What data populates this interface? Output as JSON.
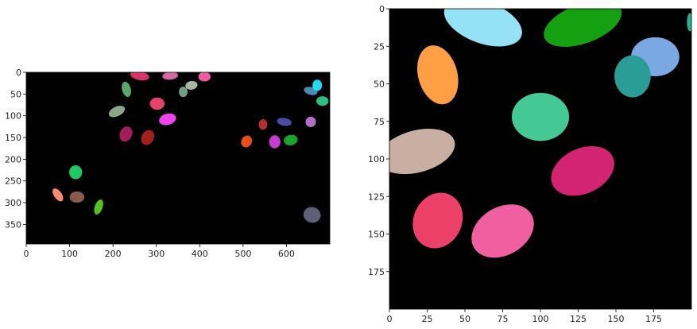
{
  "panels": [
    {
      "id": "left",
      "image_width": 700,
      "image_height": 395,
      "xticks": [
        0,
        100,
        200,
        300,
        400,
        500,
        600
      ],
      "yticks": [
        0,
        50,
        100,
        150,
        200,
        250,
        300,
        350
      ],
      "background": "#000000",
      "blobs": [
        {
          "x": 262,
          "y": 8,
          "rx": 22,
          "ry": 10,
          "rot": 10,
          "color": "#d6336c"
        },
        {
          "x": 332,
          "y": 8,
          "rx": 18,
          "ry": 9,
          "rot": -5,
          "color": "#d46aa3"
        },
        {
          "x": 411,
          "y": 10,
          "rx": 14,
          "ry": 11,
          "rot": 0,
          "color": "#f25ca4"
        },
        {
          "x": 231,
          "y": 39,
          "rx": 10,
          "ry": 18,
          "rot": -15,
          "color": "#5aa96b"
        },
        {
          "x": 302,
          "y": 72,
          "rx": 17,
          "ry": 14,
          "rot": 0,
          "color": "#e6416b"
        },
        {
          "x": 362,
          "y": 45,
          "rx": 10,
          "ry": 12,
          "rot": 0,
          "color": "#6f9f86"
        },
        {
          "x": 381,
          "y": 30,
          "rx": 14,
          "ry": 10,
          "rot": -10,
          "color": "#a8b5a0"
        },
        {
          "x": 209,
          "y": 90,
          "rx": 20,
          "ry": 11,
          "rot": -25,
          "color": "#8aa888"
        },
        {
          "x": 326,
          "y": 108,
          "rx": 20,
          "ry": 13,
          "rot": -15,
          "color": "#ee44ee"
        },
        {
          "x": 230,
          "y": 142,
          "rx": 14,
          "ry": 18,
          "rot": 25,
          "color": "#a31d5d"
        },
        {
          "x": 280,
          "y": 150,
          "rx": 14,
          "ry": 18,
          "rot": 30,
          "color": "#a32020"
        },
        {
          "x": 656,
          "y": 43,
          "rx": 16,
          "ry": 9,
          "rot": 15,
          "color": "#4a8bb5"
        },
        {
          "x": 671,
          "y": 30,
          "rx": 11,
          "ry": 13,
          "rot": 0,
          "color": "#24d9f0"
        },
        {
          "x": 683,
          "y": 66,
          "rx": 14,
          "ry": 11,
          "rot": 0,
          "color": "#2cbf80"
        },
        {
          "x": 546,
          "y": 120,
          "rx": 10,
          "ry": 12,
          "rot": 0,
          "color": "#b03030"
        },
        {
          "x": 595,
          "y": 114,
          "rx": 17,
          "ry": 9,
          "rot": 10,
          "color": "#4b4ba8"
        },
        {
          "x": 656,
          "y": 114,
          "rx": 12,
          "ry": 12,
          "rot": 0,
          "color": "#b06ec6"
        },
        {
          "x": 508,
          "y": 159,
          "rx": 12,
          "ry": 14,
          "rot": 30,
          "color": "#e84d1b"
        },
        {
          "x": 573,
          "y": 160,
          "rx": 13,
          "ry": 15,
          "rot": 0,
          "color": "#c83cd0"
        },
        {
          "x": 610,
          "y": 156,
          "rx": 16,
          "ry": 12,
          "rot": -10,
          "color": "#18a32a"
        },
        {
          "x": 114,
          "y": 230,
          "rx": 15,
          "ry": 16,
          "rot": 0,
          "color": "#1ec864"
        },
        {
          "x": 73,
          "y": 282,
          "rx": 9,
          "ry": 17,
          "rot": -35,
          "color": "#ff8a6b"
        },
        {
          "x": 117,
          "y": 287,
          "rx": 17,
          "ry": 13,
          "rot": 0,
          "color": "#8a5a4a"
        },
        {
          "x": 167,
          "y": 310,
          "rx": 9,
          "ry": 18,
          "rot": 20,
          "color": "#55c21d"
        },
        {
          "x": 659,
          "y": 328,
          "rx": 20,
          "ry": 18,
          "rot": 15,
          "color": "#5f6078"
        }
      ]
    },
    {
      "id": "right",
      "image_width": 200,
      "image_height": 200,
      "xticks": [
        0,
        25,
        50,
        75,
        100,
        125,
        150,
        175
      ],
      "yticks": [
        0,
        25,
        50,
        75,
        100,
        125,
        150,
        175
      ],
      "background": "#000000",
      "blobs": [
        {
          "x": 62,
          "y": 9,
          "rx": 27,
          "ry": 14,
          "rot": 20,
          "color": "#95e1f5"
        },
        {
          "x": 128,
          "y": 10,
          "rx": 27,
          "ry": 13,
          "rot": -20,
          "color": "#14a010"
        },
        {
          "x": 176,
          "y": 32,
          "rx": 16,
          "ry": 13,
          "rot": 0,
          "color": "#7aa8e3"
        },
        {
          "x": 161,
          "y": 45,
          "rx": 12,
          "ry": 14,
          "rot": 0,
          "color": "#2a9d97"
        },
        {
          "x": 32,
          "y": 44,
          "rx": 13,
          "ry": 20,
          "rot": -15,
          "color": "#ff9f45"
        },
        {
          "x": 100,
          "y": 72,
          "rx": 19,
          "ry": 16,
          "rot": 0,
          "color": "#45c992"
        },
        {
          "x": 18,
          "y": 95,
          "rx": 26,
          "ry": 14,
          "rot": -15,
          "color": "#c9afa2"
        },
        {
          "x": 128,
          "y": 108,
          "rx": 22,
          "ry": 15,
          "rot": -25,
          "color": "#d32472"
        },
        {
          "x": 32,
          "y": 141,
          "rx": 16,
          "ry": 19,
          "rot": 25,
          "color": "#ec4068"
        },
        {
          "x": 75,
          "y": 148,
          "rx": 22,
          "ry": 16,
          "rot": -30,
          "color": "#f060a0"
        },
        {
          "x": 199,
          "y": 9,
          "rx": 2,
          "ry": 6,
          "rot": 0,
          "color": "#2ab09a"
        }
      ]
    }
  ]
}
